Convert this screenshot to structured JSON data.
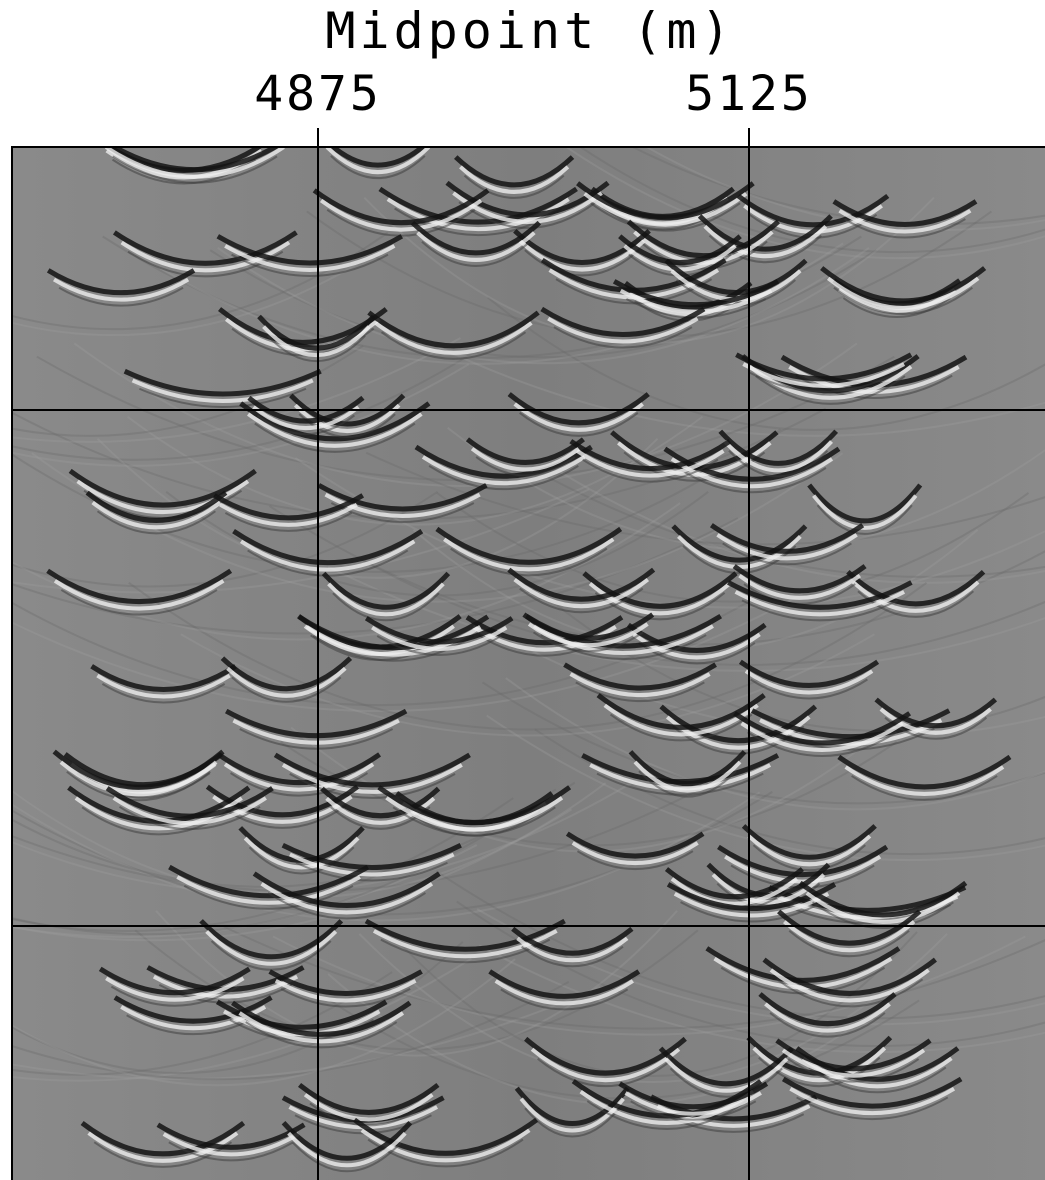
{
  "figure": {
    "axis_title": "Midpoint (m)",
    "ticks": [
      "4875",
      "5125"
    ]
  },
  "colors": {
    "background": "#808080",
    "frame": "#000000",
    "highlight": "#f0f0f0",
    "shadow": "#080808"
  },
  "panel": {
    "description_free": true,
    "horizontal_dividers": 2,
    "vertical_dividers": 2
  }
}
